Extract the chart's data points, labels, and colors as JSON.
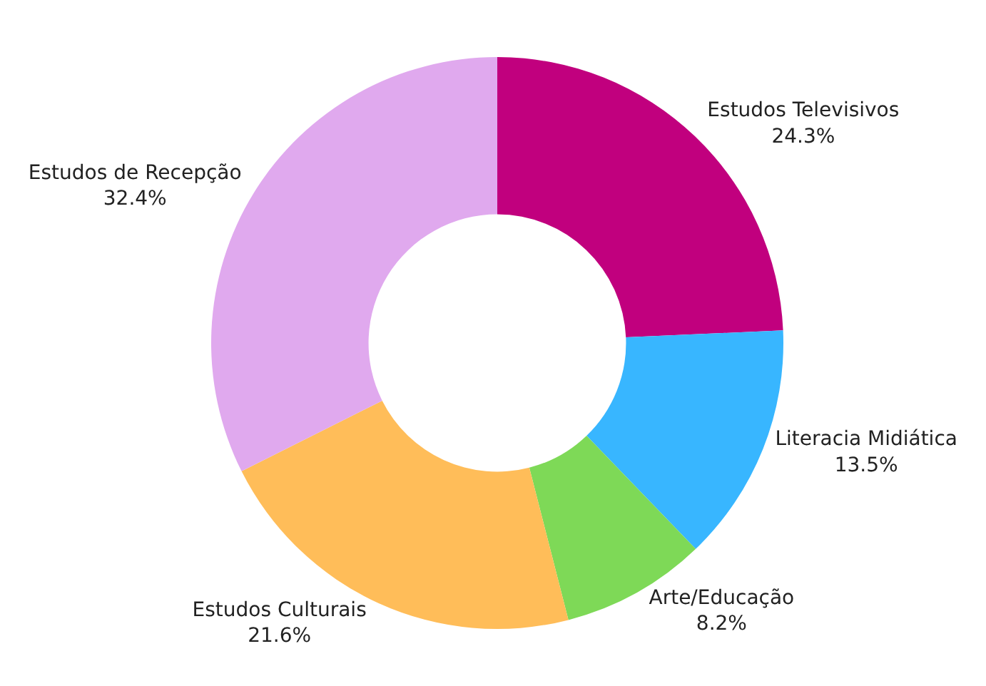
{
  "chart_data": {
    "type": "donut",
    "categories": [
      "Estudos Televisivos",
      "Literacia Midiática",
      "Arte/Educação",
      "Estudos Culturais",
      "Estudos de Recepção"
    ],
    "values": [
      24.3,
      13.5,
      8.2,
      21.6,
      32.4
    ],
    "value_labels": [
      "24.3%",
      "13.5%",
      "8.2%",
      "21.6%",
      "32.4%"
    ],
    "colors": [
      "#c1007e",
      "#38b6ff",
      "#7ed957",
      "#ffbd59",
      "#e0a9ee"
    ],
    "legend": false
  }
}
